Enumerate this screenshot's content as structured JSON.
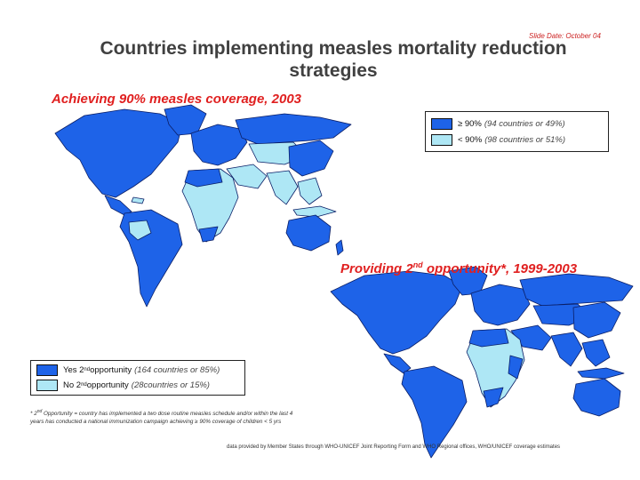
{
  "slide": {
    "date_label": "Slide Date: October 04",
    "title": "Countries implementing measles mortality reduction strategies"
  },
  "colors": {
    "high": "#1e63e8",
    "low": "#aee7f5",
    "border": "#0a1e66",
    "accent": "#e02020"
  },
  "map1": {
    "title": "Achieving 90% measles coverage, 2003",
    "legend": [
      {
        "label": "≥ 90%",
        "detail": "(94 countries or  49%)",
        "swatch": "high"
      },
      {
        "label": "< 90%",
        "detail": "(98 countries or 51%)",
        "swatch": "low"
      }
    ]
  },
  "map2": {
    "title_before": "Providing 2",
    "title_sup": "nd",
    "title_after": " opportunity*, 1999-2003",
    "legend": [
      {
        "label_before": "Yes 2",
        "label_sup": "nd",
        "label_after": " opportunity",
        "detail": "(164 countries or 85%)",
        "swatch": "high"
      },
      {
        "label_before": "No 2",
        "label_sup": "nd",
        "label_after": " opportunity",
        "detail": "(28countries or  15%)",
        "swatch": "low"
      }
    ]
  },
  "footnote": {
    "prefix": "* 2",
    "sup": "nd",
    "text": " Opportunity = country has implemented a two dose routine measles schedule and/or within the last 4 years has conducted a national immunization campaign achieving ≥ 90% coverage of children < 5 yrs"
  },
  "credits": "data provided by Member States through WHO-UNICEF Joint Reporting Form and WHO Regional offices, WHO/UNICEF coverage estimates"
}
